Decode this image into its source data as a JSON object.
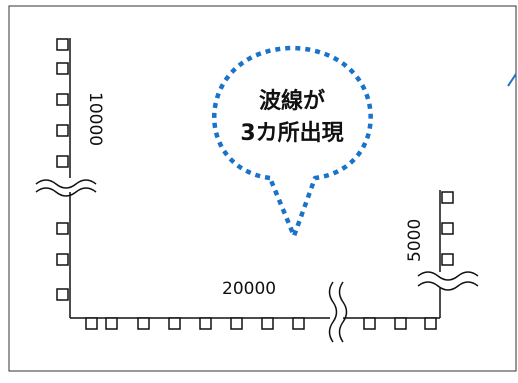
{
  "callout": {
    "line1": "波線が",
    "line2": "3カ所出現"
  },
  "dimensions": {
    "vertical_main": "10000",
    "horizontal_bottom": "20000",
    "vertical_right": "5000"
  },
  "colors": {
    "callout_border": "#1a73c8",
    "frame_border": "#333333",
    "ink": "#111111",
    "accent": "#1a73c8"
  }
}
